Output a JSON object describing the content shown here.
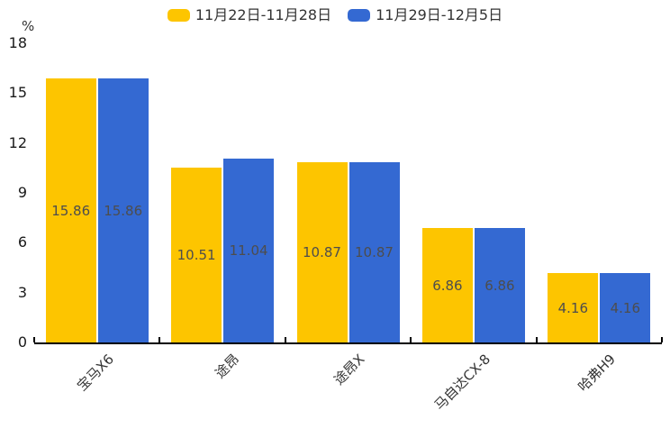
{
  "chart_data": {
    "type": "bar",
    "title": "",
    "ylabel": "%",
    "xlabel": "",
    "categories": [
      "宝马X6",
      "途昂",
      "途昂X",
      "马自达CX-8",
      "哈弗H9"
    ],
    "series": [
      {
        "name": "11月22日-11月28日",
        "color": "#fdc500",
        "values": [
          15.86,
          10.51,
          10.87,
          6.86,
          4.16
        ]
      },
      {
        "name": "11月29日-12月5日",
        "color": "#3469d2",
        "values": [
          15.86,
          11.04,
          10.87,
          6.86,
          4.16
        ]
      }
    ],
    "value_labels": [
      "15.86",
      "15.86",
      "10.51",
      "11.04",
      "10.87",
      "10.87",
      "6.86",
      "6.86",
      "4.16",
      "4.16"
    ],
    "ylim": [
      0,
      18
    ],
    "yticks": [
      0,
      3,
      6,
      9,
      12,
      15,
      18
    ],
    "grid": false,
    "legend_position": "top",
    "x_tick_rotation_deg": 45
  }
}
